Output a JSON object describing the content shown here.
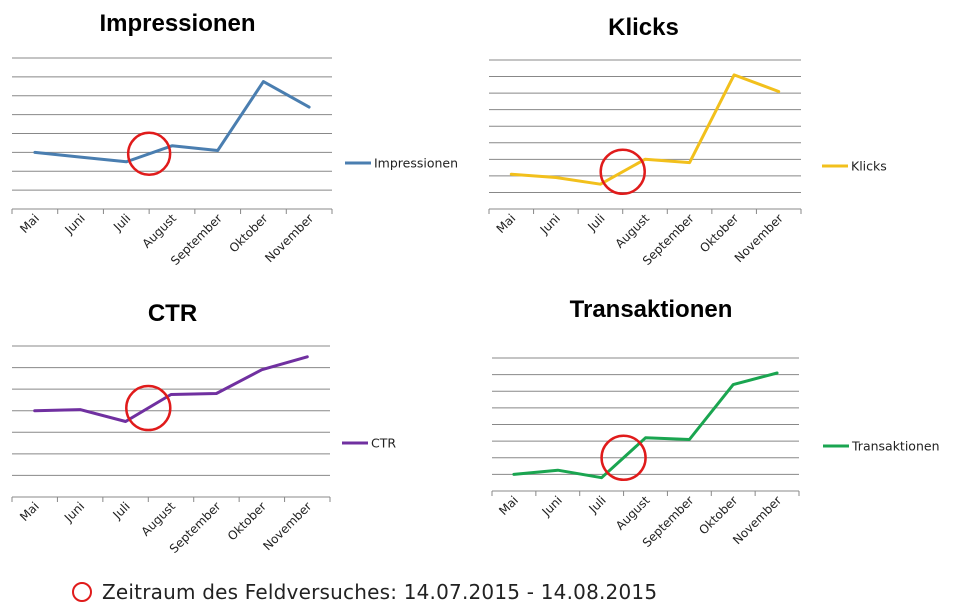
{
  "chart_data": [
    {
      "type": "line",
      "title": "Impressionen",
      "categories": [
        "Mai",
        "Juni",
        "Juli",
        "August",
        "September",
        "Oktober",
        "November"
      ],
      "series": [
        {
          "name": "Impressionen",
          "values": [
            3.0,
            2.75,
            2.5,
            3.35,
            3.1,
            6.75,
            5.4
          ],
          "color": "#4a7eb0"
        }
      ],
      "ylim": [
        0,
        8
      ],
      "grid": true,
      "legend": "right",
      "highlight_period": {
        "from": "Juli",
        "to": "August"
      }
    },
    {
      "type": "line",
      "title": "Klicks",
      "categories": [
        "Mai",
        "Juni",
        "Juli",
        "August",
        "September",
        "Oktober",
        "November"
      ],
      "series": [
        {
          "name": "Klicks",
          "values": [
            2.1,
            1.9,
            1.5,
            3.0,
            2.8,
            8.1,
            7.1
          ],
          "color": "#f2c01c"
        }
      ],
      "ylim": [
        0,
        9
      ],
      "grid": true,
      "legend": "right",
      "highlight_period": {
        "from": "Juli",
        "to": "August"
      }
    },
    {
      "type": "line",
      "title": "CTR",
      "categories": [
        "Mai",
        "Juni",
        "Juli",
        "August",
        "September",
        "Oktober",
        "November"
      ],
      "series": [
        {
          "name": "CTR",
          "values": [
            4.0,
            4.05,
            3.5,
            4.75,
            4.8,
            5.9,
            6.5
          ],
          "color": "#7030a0"
        }
      ],
      "ylim": [
        0,
        7
      ],
      "grid": true,
      "legend": "right",
      "highlight_period": {
        "from": "Juli",
        "to": "August"
      }
    },
    {
      "type": "line",
      "title": "Transaktionen",
      "categories": [
        "Mai",
        "Juni",
        "Juli",
        "August",
        "September",
        "Oktober",
        "November"
      ],
      "series": [
        {
          "name": "Transaktionen",
          "values": [
            1.0,
            1.25,
            0.8,
            3.2,
            3.1,
            6.4,
            7.1
          ],
          "color": "#1aa550"
        }
      ],
      "ylim": [
        0,
        8
      ],
      "grid": true,
      "legend": "right",
      "highlight_period": {
        "from": "Juli",
        "to": "August"
      }
    }
  ],
  "marker_color": "#e01b1b",
  "footer": {
    "text": "Zeitraum des Feldversuches: 14.07.2015 - 14.08.2015"
  }
}
